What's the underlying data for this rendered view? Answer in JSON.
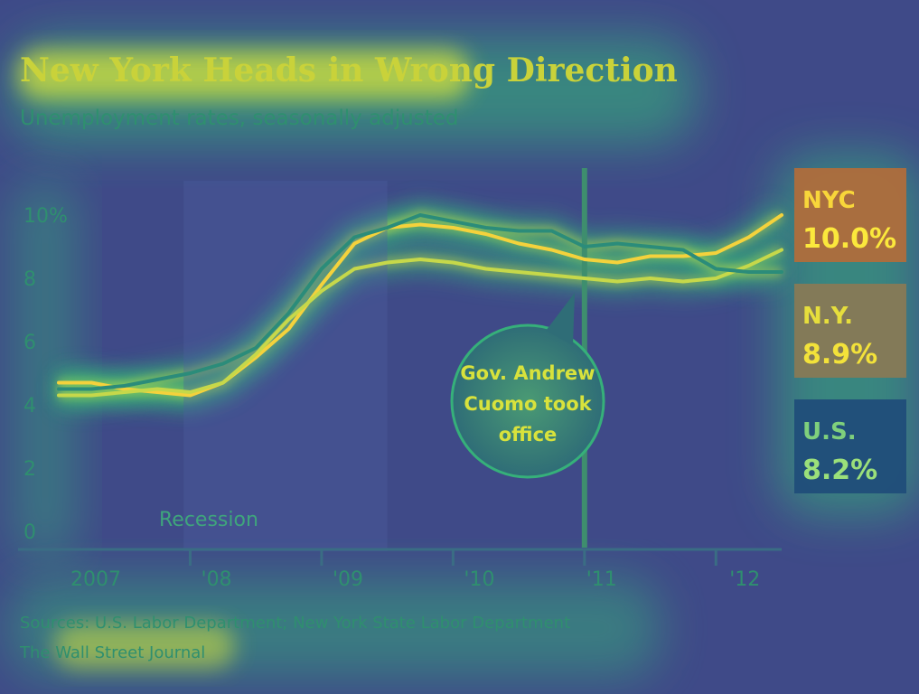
{
  "chart_data": {
    "type": "line",
    "title": "New York Heads in Wrong Direction",
    "subtitle": "Unemployment rates, seasonally adjusted",
    "x_ticks": [
      "2007",
      "'08",
      "'09",
      "'10",
      "'11",
      "'12"
    ],
    "y_ticks": [
      "10%",
      "8",
      "6",
      "4",
      "2",
      "0"
    ],
    "ylim": [
      0,
      10.5
    ],
    "grid": false,
    "legend": "right",
    "recession": {
      "start": 2007.95,
      "end": 2009.5,
      "label": "Recession"
    },
    "event": {
      "x": 2011.0,
      "label_lines": [
        "Gov. Andrew",
        "Cuomo took",
        "office"
      ]
    },
    "series": [
      {
        "name": "NYC",
        "end_label": "10.0%",
        "color": "#f4d23c",
        "x": [
          2007.0,
          2007.25,
          2007.5,
          2007.75,
          2008.0,
          2008.25,
          2008.5,
          2008.75,
          2009.0,
          2009.25,
          2009.5,
          2009.75,
          2010.0,
          2010.25,
          2010.5,
          2010.75,
          2011.0,
          2011.25,
          2011.5,
          2011.75,
          2012.0,
          2012.25,
          2012.5
        ],
        "values": [
          4.7,
          4.7,
          4.5,
          4.4,
          4.3,
          4.7,
          5.5,
          6.4,
          7.8,
          9.1,
          9.6,
          9.7,
          9.6,
          9.4,
          9.1,
          8.9,
          8.6,
          8.5,
          8.7,
          8.7,
          8.8,
          9.3,
          10.0
        ]
      },
      {
        "name": "N.Y.",
        "end_label": "8.9%",
        "color": "#c6d84a",
        "x": [
          2007.0,
          2007.25,
          2007.5,
          2007.75,
          2008.0,
          2008.25,
          2008.5,
          2008.75,
          2009.0,
          2009.25,
          2009.5,
          2009.75,
          2010.0,
          2010.25,
          2010.5,
          2010.75,
          2011.0,
          2011.25,
          2011.5,
          2011.75,
          2012.0,
          2012.25,
          2012.5
        ],
        "values": [
          4.3,
          4.3,
          4.4,
          4.5,
          4.4,
          4.7,
          5.6,
          6.7,
          7.6,
          8.3,
          8.5,
          8.6,
          8.5,
          8.3,
          8.2,
          8.1,
          8.0,
          7.9,
          8.0,
          7.9,
          8.0,
          8.4,
          8.9
        ]
      },
      {
        "name": "U.S.",
        "end_label": "8.2%",
        "color": "#2b8c7a",
        "x": [
          2007.0,
          2007.25,
          2007.5,
          2007.75,
          2008.0,
          2008.25,
          2008.5,
          2008.75,
          2009.0,
          2009.25,
          2009.5,
          2009.75,
          2010.0,
          2010.25,
          2010.5,
          2010.75,
          2011.0,
          2011.25,
          2011.5,
          2011.75,
          2012.0,
          2012.25,
          2012.5
        ],
        "values": [
          4.5,
          4.5,
          4.6,
          4.8,
          5.0,
          5.3,
          5.8,
          6.9,
          8.3,
          9.3,
          9.6,
          10.0,
          9.8,
          9.6,
          9.5,
          9.5,
          9.0,
          9.1,
          9.0,
          8.9,
          8.3,
          8.2,
          8.2
        ]
      }
    ],
    "sources": "Sources: U.S. Labor Department; New York State Labor Department",
    "credit": "The Wall Street Journal"
  }
}
